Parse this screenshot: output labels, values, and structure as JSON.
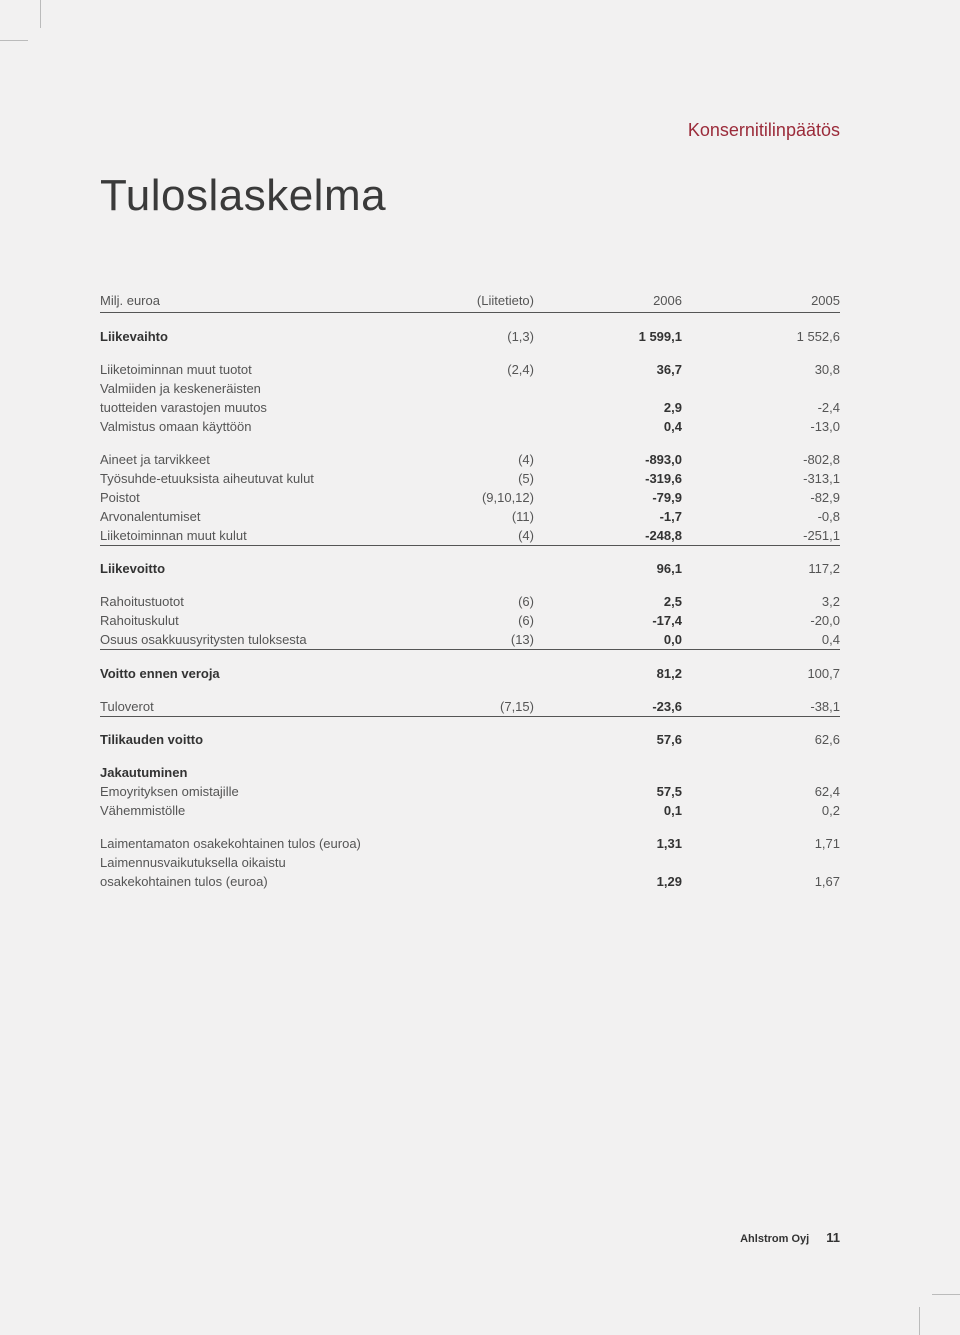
{
  "section_label": "Konsernitilinpäätös",
  "title": "Tuloslaskelma",
  "header": {
    "label": "Milj. euroa",
    "note": "(Liitetieto)",
    "y2006": "2006",
    "y2005": "2005"
  },
  "rows": [
    {
      "type": "spacer"
    },
    {
      "label": "Liikevaihto",
      "note": "(1,3)",
      "y2006": "1 599,1",
      "y2005": "1 552,6",
      "bold_label": true,
      "bold_2006": true
    },
    {
      "type": "spacer"
    },
    {
      "label": "Liiketoiminnan muut tuotot",
      "note": "(2,4)",
      "y2006": "36,7",
      "y2005": "30,8",
      "bold_2006": true
    },
    {
      "label": "Valmiiden ja keskeneräisten"
    },
    {
      "label": "tuotteiden varastojen muutos",
      "y2006": "2,9",
      "y2005": "-2,4",
      "bold_2006": true
    },
    {
      "label": "Valmistus omaan käyttöön",
      "y2006": "0,4",
      "y2005": "-13,0",
      "bold_2006": true
    },
    {
      "type": "spacer"
    },
    {
      "label": "Aineet ja tarvikkeet",
      "note": "(4)",
      "y2006": "-893,0",
      "y2005": "-802,8",
      "bold_2006": true
    },
    {
      "label": "Työsuhde-etuuksista aiheutuvat kulut",
      "note": "(5)",
      "y2006": "-319,6",
      "y2005": "-313,1",
      "bold_2006": true
    },
    {
      "label": "Poistot",
      "note": "(9,10,12)",
      "y2006": "-79,9",
      "y2005": "-82,9",
      "bold_2006": true
    },
    {
      "label": "Arvonalentumiset",
      "note": "(11)",
      "y2006": "-1,7",
      "y2005": "-0,8",
      "bold_2006": true
    },
    {
      "label": "Liiketoiminnan muut kulut",
      "note": "(4)",
      "y2006": "-248,8",
      "y2005": "-251,1",
      "bold_2006": true,
      "underline": true
    },
    {
      "type": "spacer"
    },
    {
      "label": "Liikevoitto",
      "y2006": "96,1",
      "y2005": "117,2",
      "bold_label": true,
      "bold_2006": true
    },
    {
      "type": "spacer"
    },
    {
      "label": "Rahoitustuotot",
      "note": "(6)",
      "y2006": "2,5",
      "y2005": "3,2",
      "bold_2006": true
    },
    {
      "label": "Rahoituskulut",
      "note": "(6)",
      "y2006": "-17,4",
      "y2005": "-20,0",
      "bold_2006": true
    },
    {
      "label": "Osuus osakkuusyritysten tuloksesta",
      "note": "(13)",
      "y2006": "0,0",
      "y2005": "0,4",
      "bold_2006": true,
      "underline": true
    },
    {
      "type": "spacer"
    },
    {
      "label": "Voitto ennen veroja",
      "y2006": "81,2",
      "y2005": "100,7",
      "bold_label": true,
      "bold_2006": true
    },
    {
      "type": "spacer"
    },
    {
      "label": "Tuloverot",
      "note": "(7,15)",
      "y2006": "-23,6",
      "y2005": "-38,1",
      "bold_2006": true,
      "underline": true
    },
    {
      "type": "spacer"
    },
    {
      "label": "Tilikauden voitto",
      "y2006": "57,6",
      "y2005": "62,6",
      "bold_label": true,
      "bold_2006": true
    },
    {
      "type": "spacer"
    },
    {
      "label": "Jakautuminen",
      "bold_label": true
    },
    {
      "label": "Emoyrityksen omistajille",
      "y2006": "57,5",
      "y2005": "62,4",
      "bold_2006": true
    },
    {
      "label": "Vähemmistölle",
      "y2006": "0,1",
      "y2005": "0,2",
      "bold_2006": true
    },
    {
      "type": "spacer"
    },
    {
      "label": "Laimentamaton osakekohtainen tulos (euroa)",
      "y2006": "1,31",
      "y2005": "1,71",
      "bold_2006": true
    },
    {
      "label": "Laimennusvaikutuksella oikaistu"
    },
    {
      "label": "osakekohtainen tulos (euroa)",
      "y2006": "1,29",
      "y2005": "1,67",
      "bold_2006": true
    }
  ],
  "footer": {
    "company": "Ahlstrom Oyj",
    "page": "11"
  }
}
